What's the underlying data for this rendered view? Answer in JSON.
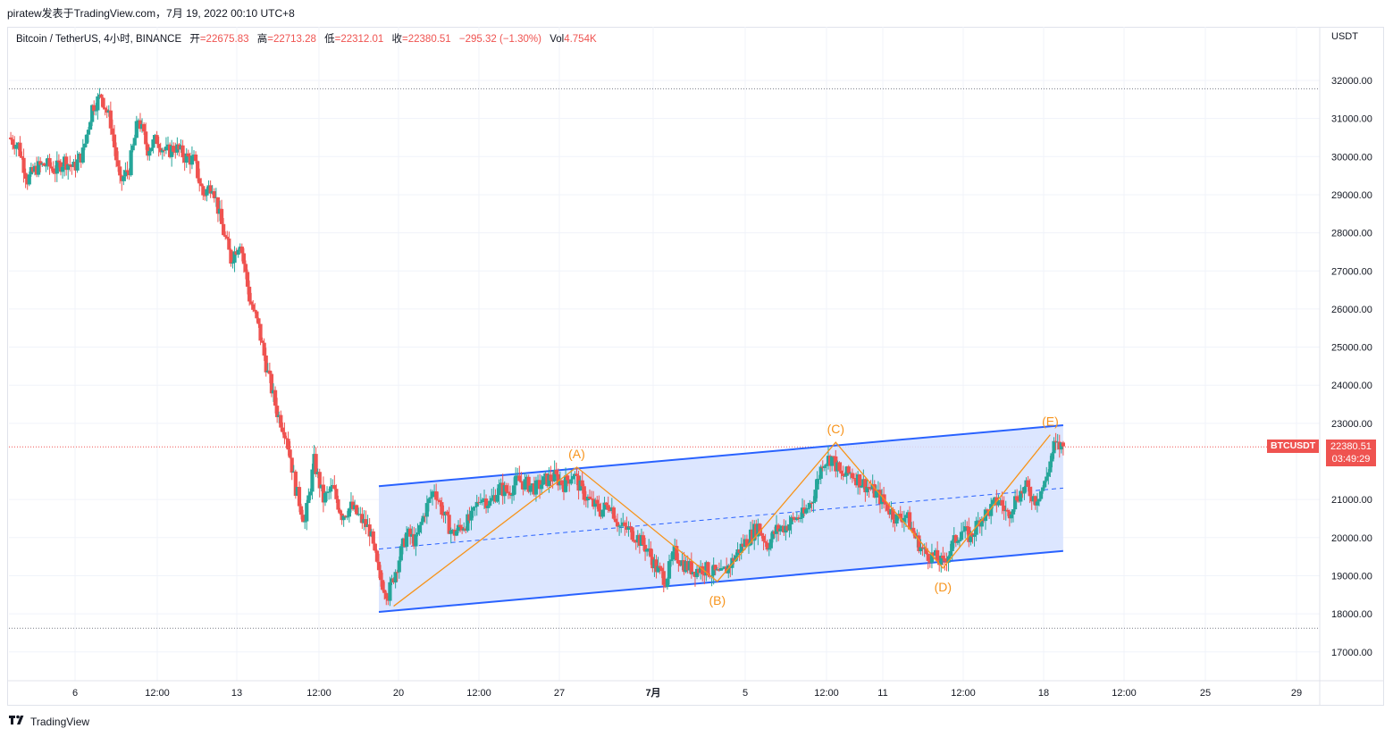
{
  "header": {
    "publish_line": "piratew发表于TradingView.com，7月 19, 2022 00:10 UTC+8"
  },
  "legend": {
    "symbol": "Bitcoin / TetherUS, 4小时, BINANCE",
    "open_label": "开",
    "open": "=22675.83",
    "high_label": "高",
    "high": "=22713.28",
    "low_label": "低",
    "low": "=22312.01",
    "close_label": "收",
    "close": "=22380.51",
    "change": "−295.32 (−1.30%)",
    "vol_label": "Vol",
    "vol": "4.754K"
  },
  "price_axis": {
    "currency": "USDT",
    "ticks": [
      "32000.00",
      "31000.00",
      "30000.00",
      "29000.00",
      "28000.00",
      "27000.00",
      "26000.00",
      "25000.00",
      "24000.00",
      "23000.00",
      "21000.00",
      "20000.00",
      "19000.00",
      "18000.00",
      "17000.00"
    ]
  },
  "time_axis": {
    "ticks": [
      "6",
      "12:00",
      "13",
      "12:00",
      "20",
      "12:00",
      "27",
      "7月",
      "5",
      "12:00",
      "11",
      "12:00",
      "18",
      "12:00",
      "25",
      "29"
    ]
  },
  "last_price": {
    "symbol": "BTCUSDT",
    "price": "22380.51",
    "countdown": "03:49:29"
  },
  "annotations": {
    "wave_labels": [
      "(A)",
      "(B)",
      "(C)",
      "(D)",
      "(E)"
    ]
  },
  "footer": {
    "brand": "TradingView"
  },
  "colors": {
    "up": "#26a69a",
    "down": "#ef5350",
    "channel": "#2962ff",
    "channel_fill": "#d6e2ff",
    "wave": "#f7931a",
    "grid": "#f0f3fa"
  },
  "chart_data": {
    "type": "candlestick",
    "symbol": "BTCUSDT",
    "interval": "4h",
    "ylim": [
      16500,
      32500
    ],
    "last_close": 22380.51,
    "horizontal_levels": [
      31780,
      17620
    ],
    "channel": {
      "upper": [
        [
          20,
          21350
        ],
        [
          57,
          22950
        ]
      ],
      "lower": [
        [
          20,
          18050
        ],
        [
          57,
          19650
        ]
      ],
      "mid": [
        [
          20,
          19700
        ],
        [
          57,
          21300
        ]
      ]
    },
    "waves": [
      {
        "label": "(A)",
        "x": 30.7,
        "y": 21850
      },
      {
        "label": "(B)",
        "x": 38.3,
        "y": 18850
      },
      {
        "label": "(C)",
        "x": 44.7,
        "y": 22500
      },
      {
        "label": "(D)",
        "x": 50.5,
        "y": 19200
      },
      {
        "label": "(E)",
        "x": 56.3,
        "y": 22700
      }
    ],
    "wave_path": [
      [
        20.8,
        18200
      ],
      [
        30.7,
        21850
      ],
      [
        38.3,
        18850
      ],
      [
        44.7,
        22500
      ],
      [
        50.5,
        19200
      ],
      [
        56.3,
        22700
      ]
    ],
    "price_path": [
      [
        0,
        30500
      ],
      [
        0.5,
        30300
      ],
      [
        1,
        29400
      ],
      [
        1.5,
        29700
      ],
      [
        2,
        29800
      ],
      [
        2.5,
        29650
      ],
      [
        3,
        29900
      ],
      [
        3.5,
        29700
      ],
      [
        4,
        30100
      ],
      [
        4.5,
        31300
      ],
      [
        5,
        31600
      ],
      [
        5.5,
        30900
      ],
      [
        6,
        29300
      ],
      [
        6.5,
        29700
      ],
      [
        7,
        31000
      ],
      [
        7.5,
        30200
      ],
      [
        8,
        30450
      ],
      [
        8.5,
        30100
      ],
      [
        9,
        30250
      ],
      [
        9.5,
        30000
      ],
      [
        10,
        29900
      ],
      [
        10.5,
        29000
      ],
      [
        11,
        29300
      ],
      [
        11.5,
        28200
      ],
      [
        12,
        27300
      ],
      [
        12.5,
        27800
      ],
      [
        13,
        26300
      ],
      [
        13.5,
        25500
      ],
      [
        14,
        24300
      ],
      [
        14.5,
        23300
      ],
      [
        15,
        22700
      ],
      [
        15.5,
        21300
      ],
      [
        16,
        20400
      ],
      [
        16.5,
        22000
      ],
      [
        17,
        21000
      ],
      [
        17.5,
        21300
      ],
      [
        18,
        20600
      ],
      [
        18.5,
        20800
      ],
      [
        19,
        20500
      ],
      [
        19.5,
        20200
      ],
      [
        20,
        19000
      ],
      [
        20.5,
        18500
      ],
      [
        21,
        19300
      ],
      [
        21.5,
        20100
      ],
      [
        22,
        19900
      ],
      [
        22.5,
        20700
      ],
      [
        23,
        21300
      ],
      [
        23.5,
        20600
      ],
      [
        24,
        20100
      ],
      [
        24.5,
        20300
      ],
      [
        25,
        20500
      ],
      [
        25.5,
        21100
      ],
      [
        26,
        20900
      ],
      [
        26.5,
        21300
      ],
      [
        27,
        21200
      ],
      [
        27.5,
        21500
      ],
      [
        28,
        21400
      ],
      [
        28.5,
        21300
      ],
      [
        29,
        21500
      ],
      [
        29.5,
        21600
      ],
      [
        30,
        21400
      ],
      [
        30.5,
        21700
      ],
      [
        31,
        21200
      ],
      [
        31.5,
        20900
      ],
      [
        32,
        20700
      ],
      [
        32.5,
        20900
      ],
      [
        33,
        20300
      ],
      [
        33.5,
        20200
      ],
      [
        34,
        20000
      ],
      [
        34.5,
        19700
      ],
      [
        35,
        19200
      ],
      [
        35.5,
        18900
      ],
      [
        36,
        19600
      ],
      [
        36.5,
        19300
      ],
      [
        37,
        19150
      ],
      [
        37.5,
        19200
      ],
      [
        38,
        19100
      ],
      [
        38.5,
        19000
      ],
      [
        39,
        19300
      ],
      [
        39.5,
        19700
      ],
      [
        40,
        20000
      ],
      [
        40.5,
        20300
      ],
      [
        41,
        19800
      ],
      [
        41.5,
        20200
      ],
      [
        42,
        20300
      ],
      [
        42.5,
        20500
      ],
      [
        43,
        20600
      ],
      [
        43.5,
        21100
      ],
      [
        44,
        22000
      ],
      [
        44.5,
        22100
      ],
      [
        45,
        21600
      ],
      [
        45.5,
        21700
      ],
      [
        46,
        21500
      ],
      [
        46.5,
        21300
      ],
      [
        47,
        21100
      ],
      [
        47.5,
        20800
      ],
      [
        48,
        20500
      ],
      [
        48.5,
        20600
      ],
      [
        49,
        20000
      ],
      [
        49.5,
        19600
      ],
      [
        50,
        19500
      ],
      [
        50.5,
        19300
      ],
      [
        51,
        19800
      ],
      [
        51.5,
        20200
      ],
      [
        52,
        20000
      ],
      [
        52.5,
        20500
      ],
      [
        53,
        20700
      ],
      [
        53.5,
        21000
      ],
      [
        54,
        20600
      ],
      [
        54.5,
        21100
      ],
      [
        55,
        21300
      ],
      [
        55.5,
        21000
      ],
      [
        56,
        21400
      ],
      [
        56.5,
        22400
      ],
      [
        57,
        22380.51
      ]
    ]
  }
}
